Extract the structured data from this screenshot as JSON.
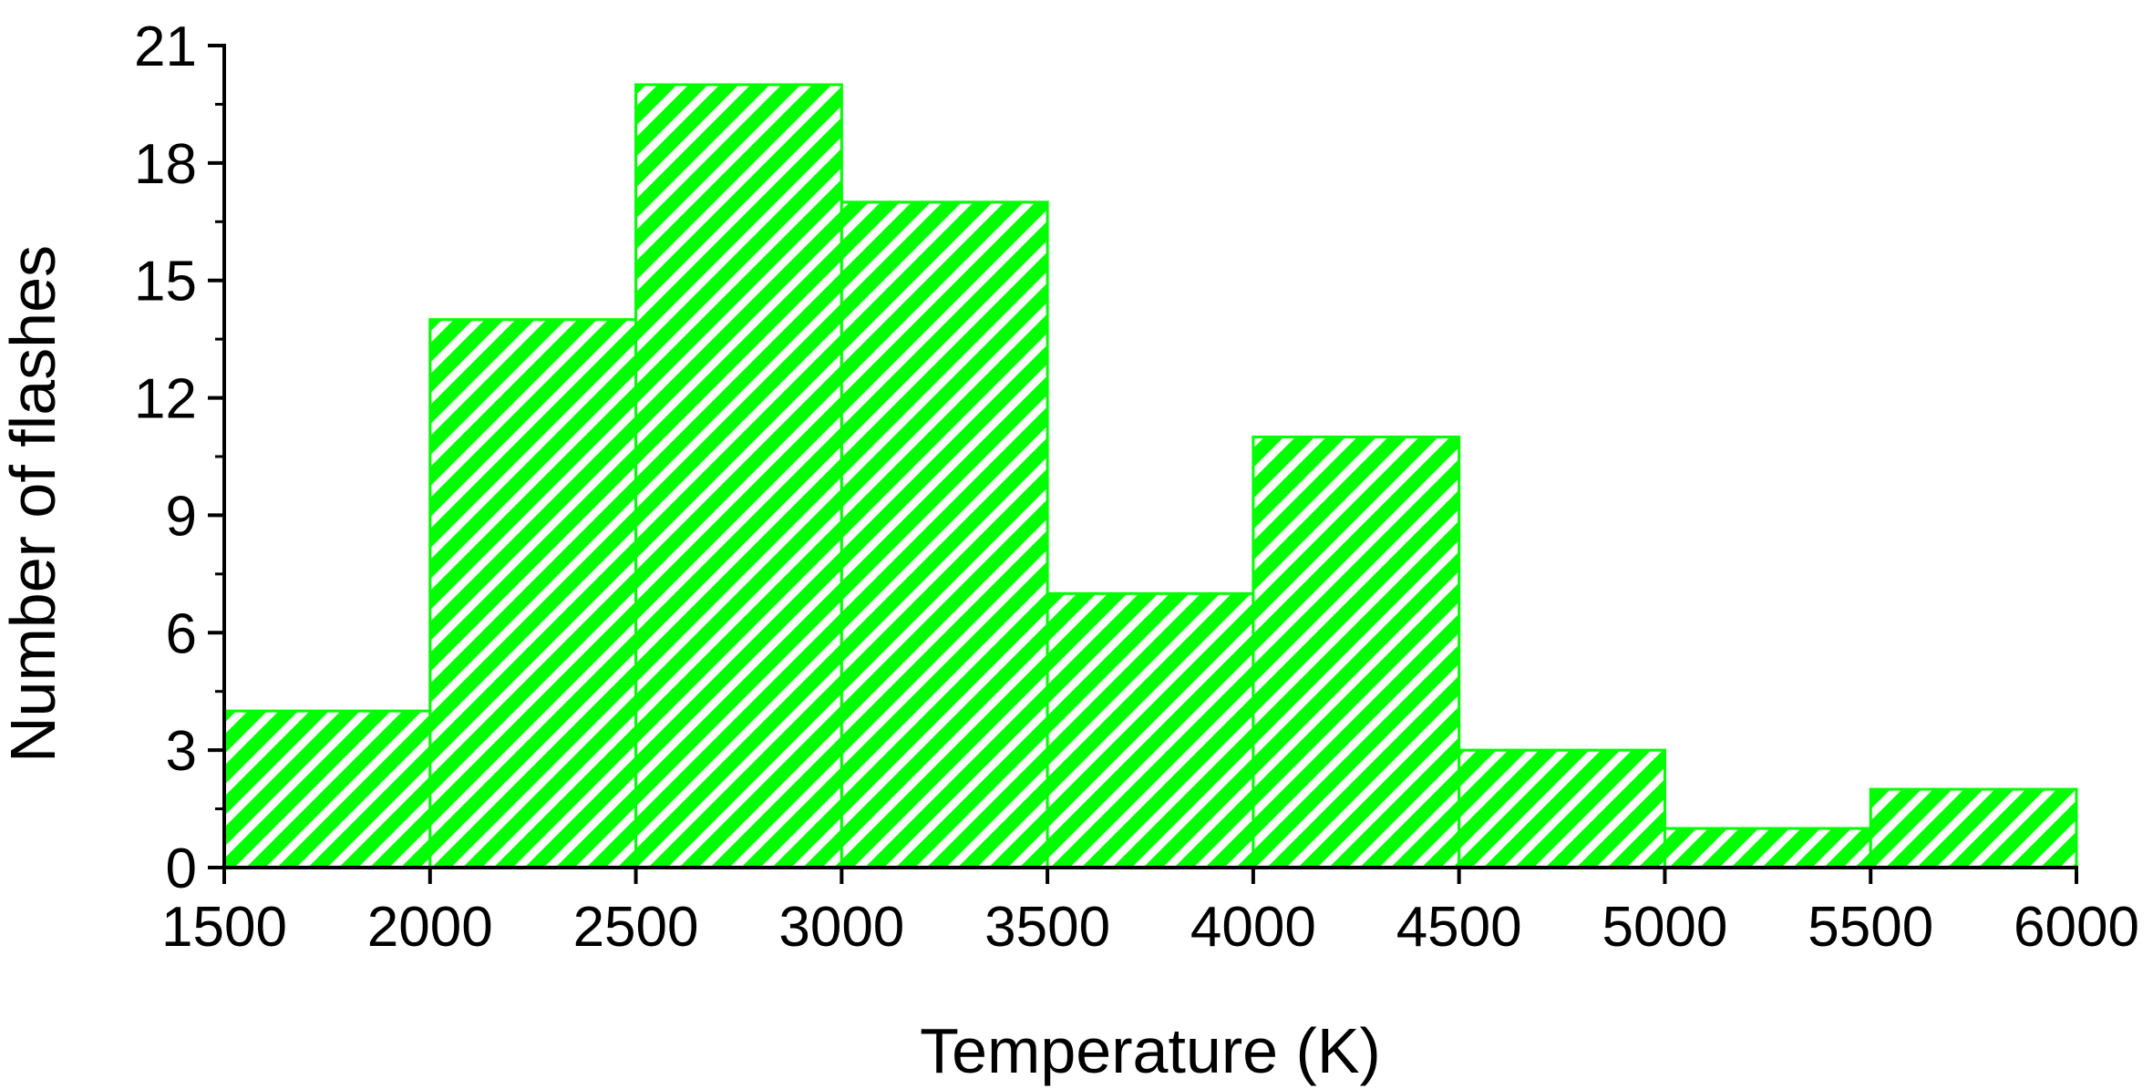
{
  "chart_data": {
    "type": "bar",
    "subtype": "histogram",
    "xlabel": "Temperature (K)",
    "ylabel": "Number of flashes",
    "bins": [
      {
        "from": 1500,
        "to": 2000,
        "count": 4
      },
      {
        "from": 2000,
        "to": 2500,
        "count": 14
      },
      {
        "from": 2500,
        "to": 3000,
        "count": 20
      },
      {
        "from": 3000,
        "to": 3500,
        "count": 17
      },
      {
        "from": 3500,
        "to": 4000,
        "count": 7
      },
      {
        "from": 4000,
        "to": 4500,
        "count": 11
      },
      {
        "from": 4500,
        "to": 5000,
        "count": 3
      },
      {
        "from": 5000,
        "to": 5500,
        "count": 1
      },
      {
        "from": 5500,
        "to": 6000,
        "count": 2
      }
    ],
    "xlim": [
      1500,
      6000
    ],
    "ylim": [
      0,
      21
    ],
    "xticks": [
      "1500",
      "2000",
      "2500",
      "3000",
      "3500",
      "4000",
      "4500",
      "5000",
      "5500",
      "6000"
    ],
    "yticks": [
      "0",
      "3",
      "6",
      "9",
      "12",
      "15",
      "18",
      "21"
    ],
    "grid": false,
    "bar_color": "#00ff00",
    "fill_pattern": "diagonal-hatch"
  }
}
